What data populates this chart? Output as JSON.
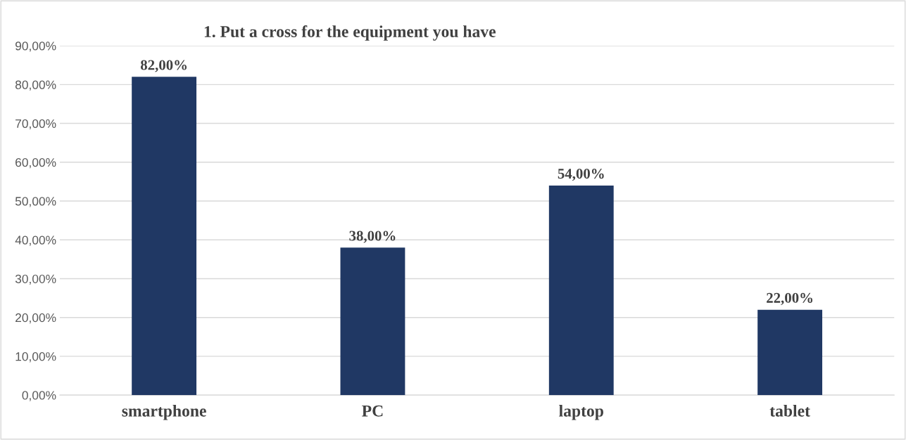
{
  "chart_data": {
    "type": "bar",
    "title": "1. Put a cross for the equipment you have",
    "categories": [
      "smartphone",
      "PC",
      "laptop",
      "tablet"
    ],
    "values": [
      82,
      38,
      54,
      22
    ],
    "value_labels": [
      "82,00%",
      "38,00%",
      "54,00%",
      "22,00%"
    ],
    "color": "#203864",
    "ylim": [
      0,
      90
    ],
    "yticks": [
      {
        "value": 0,
        "label": "0,00%"
      },
      {
        "value": 10,
        "label": "10,00%"
      },
      {
        "value": 20,
        "label": "20,00%"
      },
      {
        "value": 30,
        "label": "30,00%"
      },
      {
        "value": 40,
        "label": "40,00%"
      },
      {
        "value": 50,
        "label": "50,00%"
      },
      {
        "value": 60,
        "label": "60,00%"
      },
      {
        "value": 70,
        "label": "70,00%"
      },
      {
        "value": 80,
        "label": "80,00%"
      },
      {
        "value": 90,
        "label": "90,00%"
      }
    ],
    "grid": "y"
  }
}
